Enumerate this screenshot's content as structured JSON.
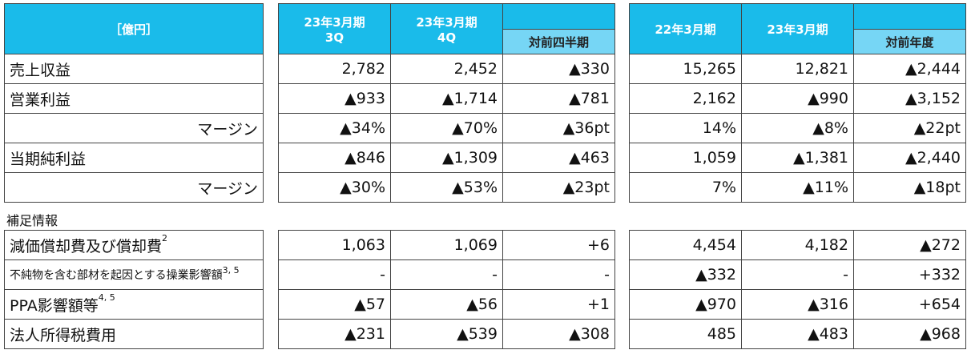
{
  "colors": {
    "header": "#1ABBEA",
    "subheader": "#76D6F5"
  },
  "header": {
    "unit": "［億円］",
    "q3": [
      "23年3月期",
      "3Q"
    ],
    "q4": [
      "23年3月期",
      "4Q"
    ],
    "qoq": "対前四半期",
    "fy22": "22年3月期",
    "fy23": "23年3月期",
    "yoy": "対前年度"
  },
  "supplement_label": "補足情報",
  "rows": [
    {
      "label": "売上収益",
      "sup": "",
      "style": "lbl",
      "q": [
        "2,782",
        "2,452",
        "▲330"
      ],
      "y": [
        "15,265",
        "12,821",
        "▲2,444"
      ]
    },
    {
      "label": "営業利益",
      "sup": "",
      "style": "lbl",
      "q": [
        "▲933",
        "▲1,714",
        "▲781"
      ],
      "y": [
        "2,162",
        "▲990",
        "▲3,152"
      ]
    },
    {
      "label": "マージン",
      "sup": "",
      "style": "indent",
      "q": [
        "▲34%",
        "▲70%",
        "▲36pt"
      ],
      "y": [
        "14%",
        "▲8%",
        "▲22pt"
      ]
    },
    {
      "label": "当期純利益",
      "sup": "",
      "style": "lbl",
      "q": [
        "▲846",
        "▲1,309",
        "▲463"
      ],
      "y": [
        "1,059",
        "▲1,381",
        "▲2,440"
      ]
    },
    {
      "label": "マージン",
      "sup": "",
      "style": "indent",
      "q": [
        "▲30%",
        "▲53%",
        "▲23pt"
      ],
      "y": [
        "7%",
        "▲11%",
        "▲18pt"
      ]
    }
  ],
  "supplement_rows": [
    {
      "label": "減価償却費及び償却費",
      "sup": "2",
      "style": "lbl",
      "q": [
        "1,063",
        "1,069",
        "+6"
      ],
      "y": [
        "4,454",
        "4,182",
        "▲272"
      ]
    },
    {
      "label": "不純物を含む部材を起因とする操業影響額",
      "sup": "3, 5",
      "style": "lbl small",
      "q": [
        "-",
        "-",
        "-"
      ],
      "y": [
        "▲332",
        "-",
        "+332"
      ]
    },
    {
      "label": "PPA影響額等",
      "sup": "4, 5",
      "style": "lbl",
      "q": [
        "▲57",
        "▲56",
        "+1"
      ],
      "y": [
        "▲970",
        "▲316",
        "+654"
      ]
    },
    {
      "label": "法人所得税費用",
      "sup": "",
      "style": "lbl",
      "q": [
        "▲231",
        "▲539",
        "▲308"
      ],
      "y": [
        "485",
        "▲483",
        "▲968"
      ]
    }
  ]
}
